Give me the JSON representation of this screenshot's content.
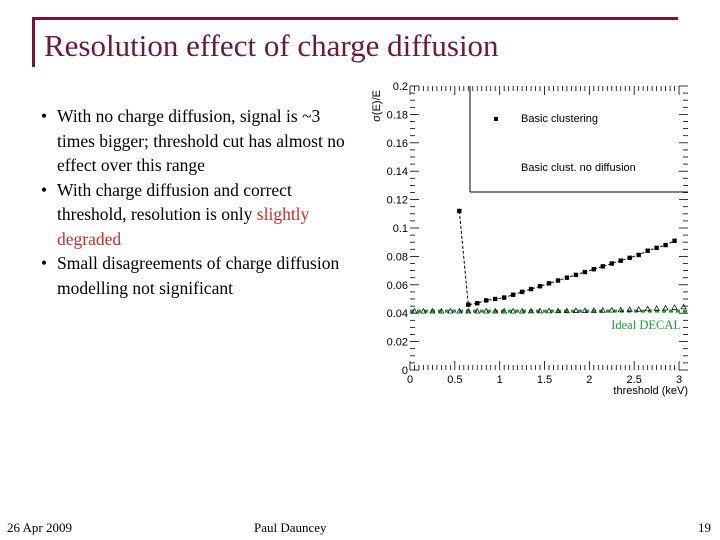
{
  "slide": {
    "title": "Resolution effect of charge diffusion",
    "bullets": [
      {
        "parts": [
          {
            "text": "With no charge diffusion, signal is ~3 times bigger; threshold cut has almost no effect over this range",
            "highlight": false
          }
        ]
      },
      {
        "parts": [
          {
            "text": "With charge diffusion and correct threshold, resolution is only ",
            "highlight": false
          },
          {
            "text": "slightly degraded",
            "highlight": true
          }
        ]
      },
      {
        "parts": [
          {
            "text": "Small disagreements of charge diffusion modelling not significant",
            "highlight": false
          }
        ]
      }
    ],
    "highlight_color": "#c0302a",
    "title_color": "#6b1a3a"
  },
  "footer": {
    "date": "26 Apr 2009",
    "author": "Paul Dauncey",
    "page": "19"
  },
  "chart_data": {
    "type": "scatter",
    "xlabel": "threshold (keV)",
    "ylabel": "σ(E)/E",
    "xlim": [
      0,
      3.1
    ],
    "ylim": [
      0,
      0.2
    ],
    "xticks": [
      "0",
      "0.5",
      "1",
      "1.5",
      "2",
      "2.5",
      "3"
    ],
    "xtick_values": [
      0,
      0.5,
      1,
      1.5,
      2,
      2.5,
      3
    ],
    "yticks": [
      "0",
      "0.02",
      "0.04",
      "0.06",
      "0.08",
      "0.1",
      "0.12",
      "0.14",
      "0.16",
      "0.18",
      "0.2"
    ],
    "ytick_values": [
      0,
      0.02,
      0.04,
      0.06,
      0.08,
      0.1,
      0.12,
      0.14,
      0.16,
      0.18,
      0.2
    ],
    "legend": {
      "placement": "top-right",
      "entries": [
        "Basic clustering",
        "Basic clust. no  diffusion"
      ]
    },
    "series": [
      {
        "name": "Basic clustering",
        "marker": "square",
        "color": "#000000",
        "x": [
          0.55,
          0.65,
          0.75,
          0.85,
          0.95,
          1.05,
          1.15,
          1.25,
          1.35,
          1.45,
          1.55,
          1.65,
          1.75,
          1.85,
          1.95,
          2.05,
          2.15,
          2.25,
          2.35,
          2.45,
          2.55,
          2.65,
          2.75,
          2.85,
          2.95
        ],
        "y": [
          0.112,
          0.046,
          0.047,
          0.049,
          0.05,
          0.051,
          0.053,
          0.055,
          0.057,
          0.059,
          0.061,
          0.063,
          0.065,
          0.067,
          0.069,
          0.071,
          0.073,
          0.075,
          0.077,
          0.079,
          0.081,
          0.084,
          0.086,
          0.088,
          0.091
        ]
      },
      {
        "name": "Basic clust. no  diffusion",
        "marker": "open-triangle",
        "color": "#000000",
        "x": [
          0.05,
          0.15,
          0.25,
          0.35,
          0.45,
          0.55,
          0.65,
          0.75,
          0.85,
          0.95,
          1.05,
          1.15,
          1.25,
          1.35,
          1.45,
          1.55,
          1.65,
          1.75,
          1.85,
          1.95,
          2.05,
          2.15,
          2.25,
          2.35,
          2.45,
          2.55,
          2.65,
          2.75,
          2.85,
          2.95,
          3.05
        ],
        "y": [
          0.0415,
          0.0415,
          0.0415,
          0.0415,
          0.0415,
          0.0415,
          0.0415,
          0.0415,
          0.0415,
          0.0415,
          0.0415,
          0.0415,
          0.0415,
          0.0416,
          0.0416,
          0.0416,
          0.0417,
          0.0417,
          0.0418,
          0.0419,
          0.042,
          0.0421,
          0.0422,
          0.0424,
          0.0426,
          0.0428,
          0.0431,
          0.0434,
          0.0437,
          0.0441,
          0.0445
        ]
      }
    ],
    "annotations": [
      {
        "text": "Ideal DECAL",
        "y": 0.0415,
        "color": "#1f9a3c",
        "style": "dashed-line"
      }
    ],
    "grid": false
  }
}
